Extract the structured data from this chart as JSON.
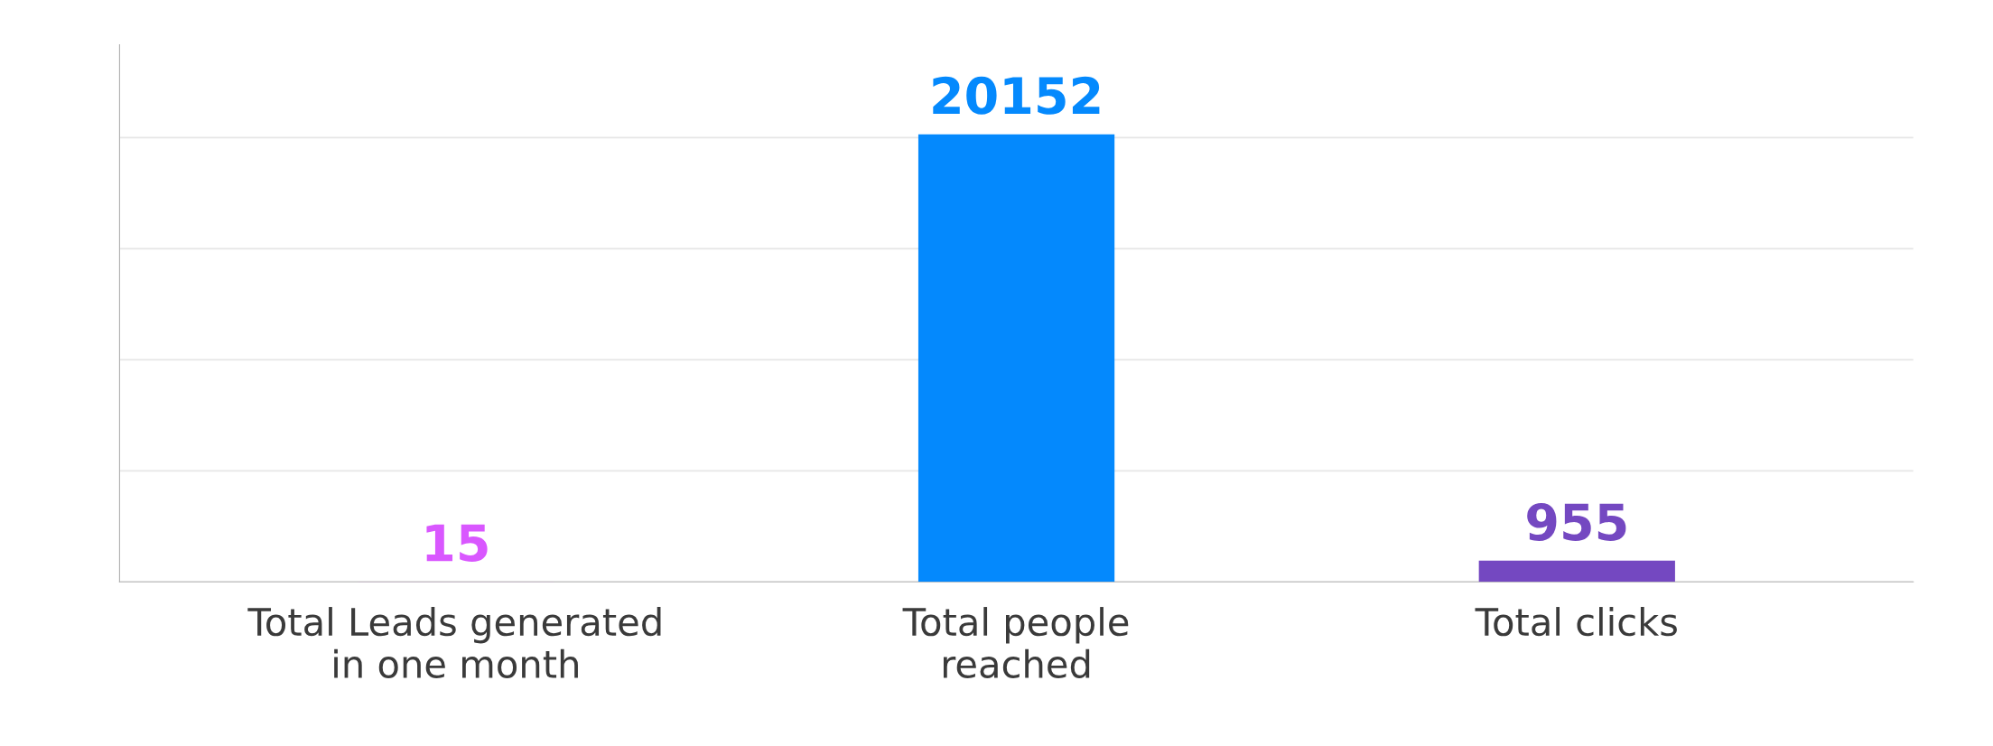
{
  "chart_data": {
    "type": "bar",
    "categories": [
      "Total Leads generated\nin one month",
      "Total people\nreached",
      "Total clicks"
    ],
    "values": [
      15,
      20152,
      955
    ],
    "colors": [
      "#d957ff",
      "#0489fd",
      "#7448c1"
    ],
    "data_labels": true,
    "grid": "y",
    "tick_labels": "x"
  }
}
